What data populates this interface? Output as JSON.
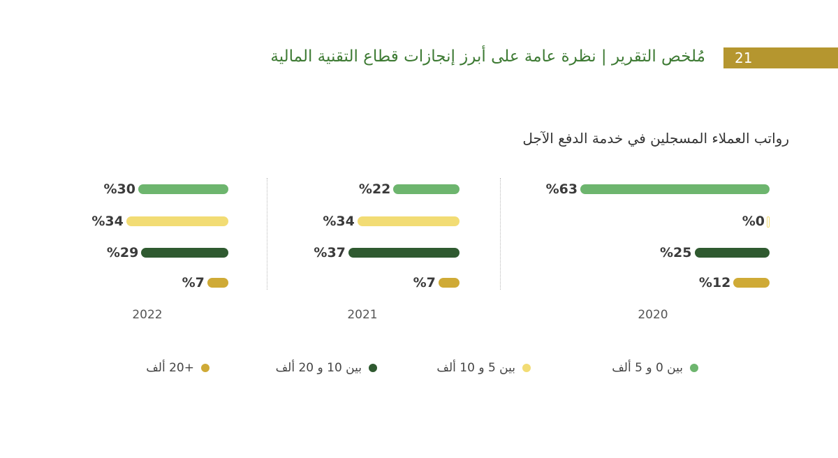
{
  "header": {
    "title": "مُلخص التقرير | نظرة عامة على أبرز إنجازات قطاع التقنية المالية",
    "page_number": "21"
  },
  "colors": {
    "accent": "#3d7a33",
    "badge": "#b5962f",
    "bands": [
      "#6db56e",
      "#f2dc74",
      "#2f5a30",
      "#cfaa36"
    ]
  },
  "chart_data": {
    "type": "bar",
    "orientation": "horizontal",
    "title": "رواتب العملاء المسجلين في خدمة الدفع الآجل",
    "unit_prefix": "%",
    "categories": [
      "بين 0 و 5 ألف",
      "بين 5 و 10 ألف",
      "بين 10 و 20 ألف",
      "+20 ألف"
    ],
    "panels": [
      {
        "year": "2020",
        "values": [
          63,
          0,
          25,
          12
        ]
      },
      {
        "year": "2021",
        "values": [
          22,
          34,
          37,
          7
        ]
      },
      {
        "year": "2022",
        "values": [
          30,
          34,
          29,
          7
        ]
      }
    ],
    "legend_position": "bottom",
    "grid": false
  }
}
